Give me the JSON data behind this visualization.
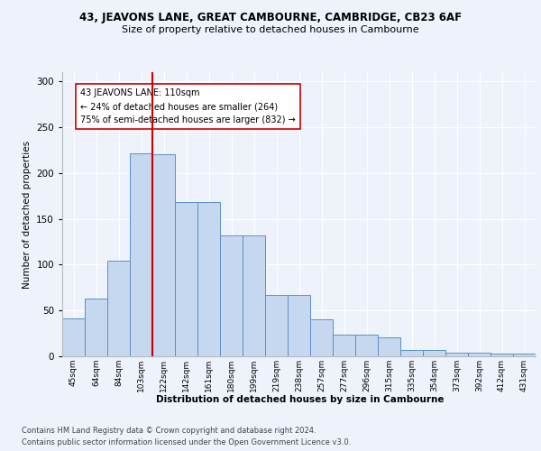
{
  "title1": "43, JEAVONS LANE, GREAT CAMBOURNE, CAMBRIDGE, CB23 6AF",
  "title2": "Size of property relative to detached houses in Cambourne",
  "xlabel": "Distribution of detached houses by size in Cambourne",
  "ylabel": "Number of detached properties",
  "categories": [
    "45sqm",
    "64sqm",
    "84sqm",
    "103sqm",
    "122sqm",
    "142sqm",
    "161sqm",
    "180sqm",
    "199sqm",
    "219sqm",
    "238sqm",
    "257sqm",
    "277sqm",
    "296sqm",
    "315sqm",
    "335sqm",
    "354sqm",
    "373sqm",
    "392sqm",
    "412sqm",
    "431sqm"
  ],
  "values": [
    41,
    63,
    104,
    221,
    220,
    168,
    168,
    132,
    132,
    67,
    67,
    40,
    24,
    24,
    21,
    7,
    7,
    4,
    4,
    3,
    3
  ],
  "bar_color": "#c5d8f0",
  "bar_edge_color": "#5b8fc9",
  "vline_x": 3.5,
  "vline_color": "#cc0000",
  "annotation_text": "43 JEAVONS LANE: 110sqm\n← 24% of detached houses are smaller (264)\n75% of semi-detached houses are larger (832) →",
  "annotation_box_color": "#ffffff",
  "annotation_box_edge": "#cc0000",
  "ylim": [
    0,
    310
  ],
  "yticks": [
    0,
    50,
    100,
    150,
    200,
    250,
    300
  ],
  "background_color": "#eef2fb",
  "grid_color": "#ffffff",
  "footer1": "Contains HM Land Registry data © Crown copyright and database right 2024.",
  "footer2": "Contains public sector information licensed under the Open Government Licence v3.0."
}
